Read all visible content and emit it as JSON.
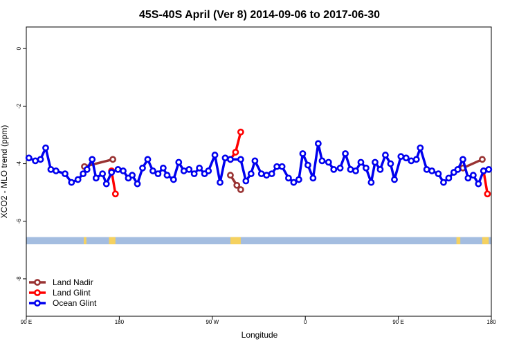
{
  "chart_data": {
    "type": "line",
    "title": "45S-40S April (Ver 8)   2014-09-06 to 2017-06-30",
    "xlabel": "Longitude",
    "ylabel": "XCO2 - MLO trend (ppm)",
    "xlim": [
      0,
      360
    ],
    "ylim": [
      -9.3,
      0.75
    ],
    "x_ticks": [
      {
        "value": 0,
        "label": "90 E"
      },
      {
        "value": 72,
        "label": "180"
      },
      {
        "value": 144,
        "label": "90 W"
      },
      {
        "value": 216,
        "label": "0"
      },
      {
        "value": 288,
        "label": "90 E"
      },
      {
        "value": 360,
        "label": "180"
      }
    ],
    "y_ticks": [
      {
        "value": 0,
        "label": "0"
      },
      {
        "value": -2,
        "label": "-2"
      },
      {
        "value": -4,
        "label": "-4"
      },
      {
        "value": -6,
        "label": "-6"
      },
      {
        "value": -8,
        "label": "-8"
      }
    ],
    "grid": false,
    "legend_position": "bottom-left",
    "land_band": {
      "y_range": [
        -6.55,
        -6.8
      ],
      "ocean_color": "#a4bde0",
      "land_color": "#f5d15f",
      "land_segments": [
        [
          44.5,
          46.5
        ],
        [
          64,
          69
        ],
        [
          158,
          166
        ],
        [
          333,
          336
        ],
        [
          353,
          358
        ]
      ]
    },
    "series": [
      {
        "name": "Land Nadir",
        "color": "#993333",
        "points": [
          [
            45,
            -4.1
          ],
          [
            67,
            -3.85
          ],
          [
            158,
            -4.4
          ],
          [
            163,
            -4.75
          ],
          [
            166,
            -4.9
          ],
          [
            338,
            -4.15
          ],
          [
            353,
            -3.85
          ]
        ]
      },
      {
        "name": "Land Glint",
        "color": "#ff0000",
        "points": [
          [
            66,
            -4.25
          ],
          [
            69,
            -5.05
          ],
          [
            158,
            -3.85
          ],
          [
            162,
            -3.6
          ],
          [
            166,
            -2.9
          ],
          [
            354,
            -4.25
          ],
          [
            357,
            -5.05
          ]
        ]
      },
      {
        "name": "Ocean Glint",
        "color": "#0000ee",
        "points": [
          [
            2,
            -3.8
          ],
          [
            7,
            -3.9
          ],
          [
            11,
            -3.85
          ],
          [
            15,
            -3.45
          ],
          [
            19,
            -4.2
          ],
          [
            23,
            -4.25
          ],
          [
            30,
            -4.35
          ],
          [
            35,
            -4.65
          ],
          [
            40,
            -4.55
          ],
          [
            44,
            -4.35
          ],
          [
            47,
            -4.2
          ],
          [
            51,
            -3.85
          ],
          [
            54,
            -4.5
          ],
          [
            59,
            -4.35
          ],
          [
            62,
            -4.7
          ],
          [
            66,
            -4.3
          ],
          [
            71,
            -4.2
          ],
          [
            75,
            -4.25
          ],
          [
            79,
            -4.5
          ],
          [
            82,
            -4.4
          ],
          [
            86,
            -4.7
          ],
          [
            90,
            -4.15
          ],
          [
            94,
            -3.85
          ],
          [
            98,
            -4.25
          ],
          [
            102,
            -4.35
          ],
          [
            106,
            -4.15
          ],
          [
            109,
            -4.4
          ],
          [
            114,
            -4.55
          ],
          [
            118,
            -3.95
          ],
          [
            122,
            -4.25
          ],
          [
            126,
            -4.2
          ],
          [
            130,
            -4.35
          ],
          [
            134,
            -4.15
          ],
          [
            138,
            -4.35
          ],
          [
            141,
            -4.25
          ],
          [
            146,
            -3.7
          ],
          [
            150,
            -4.65
          ],
          [
            154,
            -3.8
          ],
          [
            158,
            -3.85
          ],
          [
            166,
            -3.85
          ],
          [
            170,
            -4.6
          ],
          [
            174,
            -4.35
          ],
          [
            177,
            -3.9
          ],
          [
            182,
            -4.35
          ],
          [
            186,
            -4.4
          ],
          [
            190,
            -4.35
          ],
          [
            194,
            -4.1
          ],
          [
            198,
            -4.1
          ],
          [
            203,
            -4.5
          ],
          [
            207,
            -4.65
          ],
          [
            211,
            -4.55
          ],
          [
            214,
            -3.65
          ],
          [
            218,
            -4.05
          ],
          [
            222,
            -4.5
          ],
          [
            226,
            -3.3
          ],
          [
            229,
            -3.9
          ],
          [
            234,
            -3.95
          ],
          [
            238,
            -4.2
          ],
          [
            243,
            -4.15
          ],
          [
            247,
            -3.65
          ],
          [
            251,
            -4.2
          ],
          [
            255,
            -4.25
          ],
          [
            259,
            -3.95
          ],
          [
            263,
            -4.15
          ],
          [
            267,
            -4.65
          ],
          [
            270,
            -3.95
          ],
          [
            274,
            -4.2
          ],
          [
            278,
            -3.7
          ],
          [
            282,
            -4.0
          ],
          [
            285,
            -4.55
          ],
          [
            290,
            -3.75
          ],
          [
            294,
            -3.8
          ],
          [
            298,
            -3.9
          ],
          [
            302,
            -3.85
          ],
          [
            305,
            -3.45
          ],
          [
            310,
            -4.2
          ],
          [
            314,
            -4.25
          ],
          [
            319,
            -4.35
          ],
          [
            323,
            -4.65
          ],
          [
            327,
            -4.5
          ],
          [
            331,
            -4.3
          ],
          [
            334,
            -4.2
          ],
          [
            338,
            -3.85
          ],
          [
            342,
            -4.5
          ],
          [
            346,
            -4.4
          ],
          [
            350,
            -4.7
          ],
          [
            354,
            -4.25
          ],
          [
            358,
            -4.2
          ]
        ]
      }
    ]
  }
}
